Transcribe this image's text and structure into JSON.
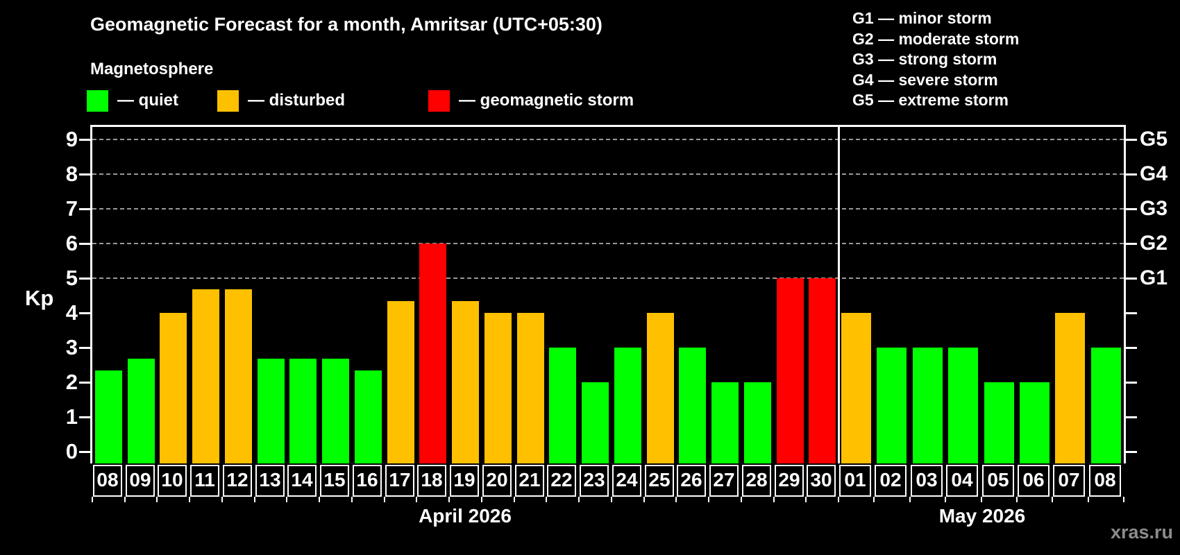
{
  "header": {
    "title": "Geomagnetic Forecast for a month, Amritsar (UTC+05:30)",
    "subtitle": "Magnetosphere"
  },
  "legend": {
    "items": [
      {
        "label": "— quiet",
        "level": "quiet",
        "color": "#00ff00"
      },
      {
        "label": "— disturbed",
        "level": "disturbed",
        "color": "#ffc000"
      },
      {
        "label": "— geomagnetic storm",
        "level": "storm",
        "color": "#ff0000"
      }
    ]
  },
  "g_legend": {
    "lines": [
      "G1 — minor storm",
      "G2 — moderate storm",
      "G3 — strong storm",
      "G4 — severe storm",
      "G5 — extreme storm"
    ]
  },
  "watermark": "xras.ru",
  "chart_data": {
    "type": "bar",
    "title": "Geomagnetic Forecast for a month, Amritsar (UTC+05:30)",
    "xlabel": "",
    "ylabel": "Kp",
    "ylim": [
      0,
      9.5
    ],
    "grid": "dashed horizontal at Kp 5-9 only",
    "y_ticks": [
      0,
      1,
      2,
      3,
      4,
      5,
      6,
      7,
      8,
      9
    ],
    "gridlines_at_kp": [
      5,
      6,
      7,
      8,
      9
    ],
    "right_axis_labels": [
      {
        "kp": 5,
        "label": "G1"
      },
      {
        "kp": 6,
        "label": "G2"
      },
      {
        "kp": 7,
        "label": "G3"
      },
      {
        "kp": 8,
        "label": "G4"
      },
      {
        "kp": 9,
        "label": "G5"
      }
    ],
    "level_colors": {
      "quiet": "#00ff00",
      "disturbed": "#ffc000",
      "storm": "#ff0000"
    },
    "divider_color": "#ffffff",
    "months": [
      {
        "label": "April 2026",
        "days": [
          {
            "date": "08",
            "kp": 2.33,
            "level": "quiet"
          },
          {
            "date": "09",
            "kp": 2.67,
            "level": "quiet"
          },
          {
            "date": "10",
            "kp": 4.0,
            "level": "disturbed"
          },
          {
            "date": "11",
            "kp": 4.67,
            "level": "disturbed"
          },
          {
            "date": "12",
            "kp": 4.67,
            "level": "disturbed"
          },
          {
            "date": "13",
            "kp": 2.67,
            "level": "quiet"
          },
          {
            "date": "14",
            "kp": 2.67,
            "level": "quiet"
          },
          {
            "date": "15",
            "kp": 2.67,
            "level": "quiet"
          },
          {
            "date": "16",
            "kp": 2.33,
            "level": "quiet"
          },
          {
            "date": "17",
            "kp": 4.33,
            "level": "disturbed"
          },
          {
            "date": "18",
            "kp": 6.0,
            "level": "storm"
          },
          {
            "date": "19",
            "kp": 4.33,
            "level": "disturbed"
          },
          {
            "date": "20",
            "kp": 4.0,
            "level": "disturbed"
          },
          {
            "date": "21",
            "kp": 4.0,
            "level": "disturbed"
          },
          {
            "date": "22",
            "kp": 3.0,
            "level": "quiet"
          },
          {
            "date": "23",
            "kp": 2.0,
            "level": "quiet"
          },
          {
            "date": "24",
            "kp": 3.0,
            "level": "quiet"
          },
          {
            "date": "25",
            "kp": 4.0,
            "level": "disturbed"
          },
          {
            "date": "26",
            "kp": 3.0,
            "level": "quiet"
          },
          {
            "date": "27",
            "kp": 2.0,
            "level": "quiet"
          },
          {
            "date": "28",
            "kp": 2.0,
            "level": "quiet"
          },
          {
            "date": "29",
            "kp": 5.0,
            "level": "storm"
          },
          {
            "date": "30",
            "kp": 5.0,
            "level": "storm"
          }
        ]
      },
      {
        "label": "May 2026",
        "days": [
          {
            "date": "01",
            "kp": 4.0,
            "level": "disturbed"
          },
          {
            "date": "02",
            "kp": 3.0,
            "level": "quiet"
          },
          {
            "date": "03",
            "kp": 3.0,
            "level": "quiet"
          },
          {
            "date": "04",
            "kp": 3.0,
            "level": "quiet"
          },
          {
            "date": "05",
            "kp": 2.0,
            "level": "quiet"
          },
          {
            "date": "06",
            "kp": 2.0,
            "level": "quiet"
          },
          {
            "date": "07",
            "kp": 4.0,
            "level": "disturbed"
          },
          {
            "date": "08",
            "kp": 3.0,
            "level": "quiet"
          }
        ]
      }
    ]
  }
}
